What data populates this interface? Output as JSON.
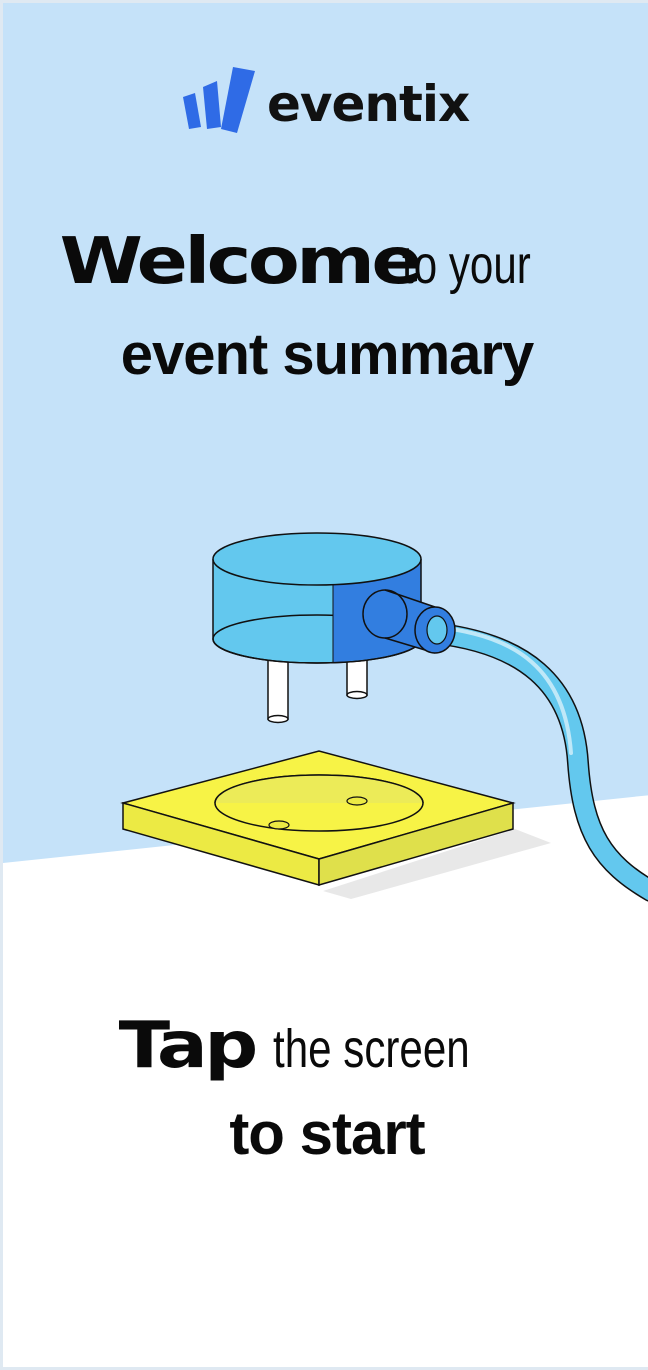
{
  "brand": {
    "name": "eventix",
    "logo_icon": "bar-chart-logo-icon"
  },
  "welcome": {
    "bold": "Welcome",
    "rest": "to your",
    "line2": "event summary"
  },
  "illustration": {
    "name": "power-plug-and-socket-illustration"
  },
  "cta": {
    "bold": "Tap",
    "rest": "the screen",
    "line2": "to start"
  },
  "colors": {
    "top_background": "#c5e2f9",
    "brand_blue": "#2f6be6",
    "plug_light": "#63c8ee",
    "plug_dark": "#327ee0",
    "socket_yellow": "#f7f346",
    "socket_side": "#dfe04b"
  }
}
